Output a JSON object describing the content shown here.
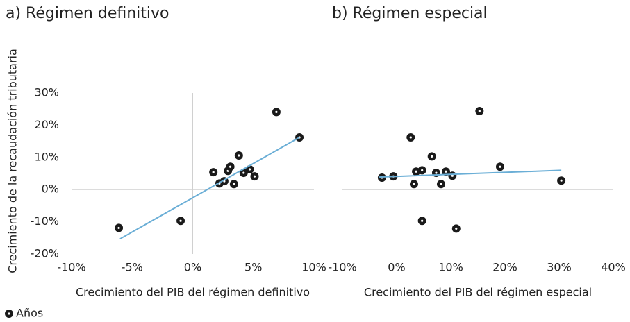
{
  "chart_data": [
    {
      "type": "scatter",
      "title": "a) Régimen definitivo",
      "xlabel": "Crecimiento del PIB del régimen definitivo",
      "ylabel": "Crecimiento de la recaudación tributaria",
      "xlim": [
        -10,
        10
      ],
      "xticks": [
        {
          "value": -10,
          "label": "-10%"
        },
        {
          "value": -5,
          "label": "-5%"
        },
        {
          "value": 0,
          "label": "0%"
        },
        {
          "value": 5,
          "label": "5%"
        },
        {
          "value": 10,
          "label": "10%"
        }
      ],
      "ylim": [
        -20,
        30
      ],
      "yticks": [
        {
          "value": -20,
          "label": "-20%"
        },
        {
          "value": -10,
          "label": "-10%"
        },
        {
          "value": 0,
          "label": "0%"
        },
        {
          "value": 10,
          "label": "10%"
        },
        {
          "value": 20,
          "label": "20%"
        },
        {
          "value": 30,
          "label": "30%"
        }
      ],
      "series": [
        {
          "name": "Años",
          "color": "#1a1a1a",
          "x": [
            -6.1,
            -1.0,
            1.7,
            2.2,
            2.6,
            2.9,
            3.1,
            3.4,
            3.8,
            4.2,
            4.7,
            5.1,
            6.9,
            8.8
          ],
          "values": [
            -11.9,
            -9.7,
            5.4,
            1.9,
            2.6,
            5.8,
            7.1,
            1.7,
            10.6,
            5.2,
            6.3,
            4.1,
            24.1,
            16.2
          ]
        }
      ],
      "trendline": {
        "color": "#6aaed6",
        "x": [
          -6.0,
          8.8
        ],
        "values": [
          -15.3,
          16.2
        ]
      }
    },
    {
      "type": "scatter",
      "title": "b) Régimen especial",
      "xlabel": "Crecimiento del PIB del régimen especial",
      "xlim": [
        -10,
        40
      ],
      "xticks": [
        {
          "value": -10,
          "label": "-10%"
        },
        {
          "value": 0,
          "label": "0%"
        },
        {
          "value": 10,
          "label": "10%"
        },
        {
          "value": 20,
          "label": "20%"
        },
        {
          "value": 30,
          "label": "30%"
        },
        {
          "value": 40,
          "label": "40%"
        }
      ],
      "ylim": [
        -20,
        30
      ],
      "series": [
        {
          "color": "#1a1a1a",
          "x": [
            -2.7,
            -0.6,
            2.6,
            3.2,
            3.6,
            4.7,
            4.7,
            6.5,
            7.3,
            8.2,
            9.1,
            10.3,
            11.0,
            15.3,
            19.1,
            30.4
          ],
          "values": [
            3.7,
            4.1,
            16.2,
            1.7,
            5.6,
            6.0,
            -9.7,
            10.3,
            5.2,
            1.7,
            5.6,
            4.3,
            -12.1,
            24.4,
            7.1,
            2.8
          ]
        }
      ],
      "trendline": {
        "color": "#6aaed6",
        "x": [
          -3.2,
          30.4
        ],
        "values": [
          3.9,
          6.0
        ]
      }
    }
  ]
}
